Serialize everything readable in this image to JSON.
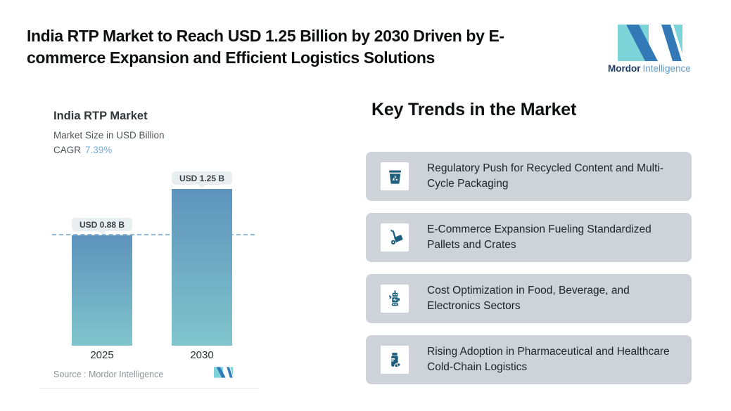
{
  "header": {
    "title": "India RTP Market to Reach USD 1.25 Billion by 2030 Driven by E-commerce Expansion and Efficient Logistics Solutions"
  },
  "brand": {
    "name_primary": "Mordor",
    "name_secondary": "Intelligence",
    "colors": {
      "teal": "#7cd3d8",
      "blue": "#3379b8"
    }
  },
  "chart_data": {
    "type": "bar",
    "title": "India RTP Market",
    "subtitle": "Market Size in USD Billion",
    "cagr_label": "CAGR",
    "cagr_value": "7.39%",
    "categories": [
      "2025",
      "2030"
    ],
    "values": [
      0.88,
      1.25
    ],
    "value_labels": [
      "USD 0.88 B",
      "USD 1.25 B"
    ],
    "ylim": [
      0,
      1.25
    ],
    "reference_line_value": 0.88,
    "grid": false,
    "legend": false,
    "source_label": "Source :  Mordor Intelligence",
    "bar_gradient_top": "#5e93bb",
    "bar_gradient_bottom": "#80c5cd",
    "dashed_line_color": "#8fb9da"
  },
  "trends": {
    "heading": "Key Trends in the Market",
    "card_bg": "#ced3d9",
    "icon_color": "#1d5f7c",
    "items": [
      {
        "icon": "recycle-bin-icon",
        "text": "Regulatory Push for Recycled Content and Multi-Cycle Packaging"
      },
      {
        "icon": "hand-truck-icon",
        "text": "E-Commerce Expansion Fueling Standardized Pallets and Crates"
      },
      {
        "icon": "robot-icon",
        "text": "Cost Optimization in Food, Beverage, and Electronics Sectors"
      },
      {
        "icon": "pill-bottle-icon",
        "text": "Rising Adoption in Pharmaceutical and Healthcare Cold-Chain Logistics"
      }
    ]
  }
}
